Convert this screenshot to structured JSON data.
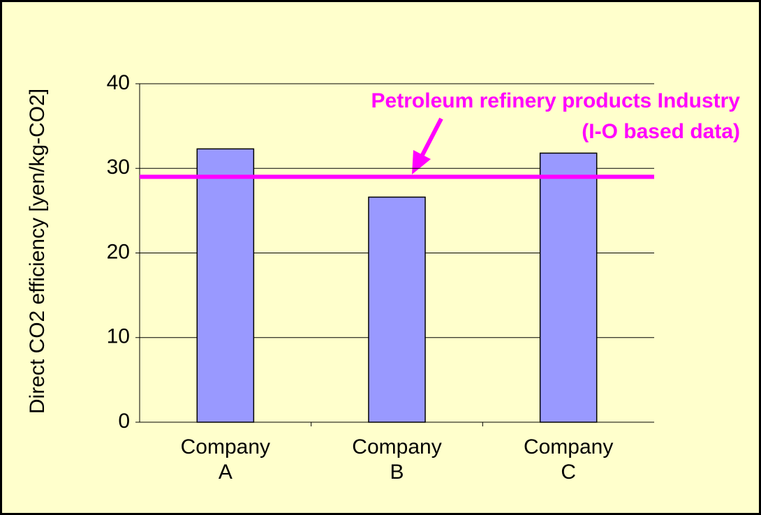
{
  "chart_data": {
    "type": "bar",
    "y_label": "Direct CO2 efficiency [yen/kg-CO2]",
    "categories": [
      "Company A",
      "Company B",
      "Company C"
    ],
    "values": [
      32.3,
      26.6,
      31.8
    ],
    "color": "#9999ff",
    "ylim": [
      0,
      40
    ],
    "yticks": [
      0,
      10,
      20,
      30,
      40
    ],
    "grid": true,
    "reference_line": {
      "value": 29,
      "color": "#ff00ff",
      "label_lines": [
        "Petroleum refinery products Industry",
        "(I-O based data)"
      ]
    }
  }
}
